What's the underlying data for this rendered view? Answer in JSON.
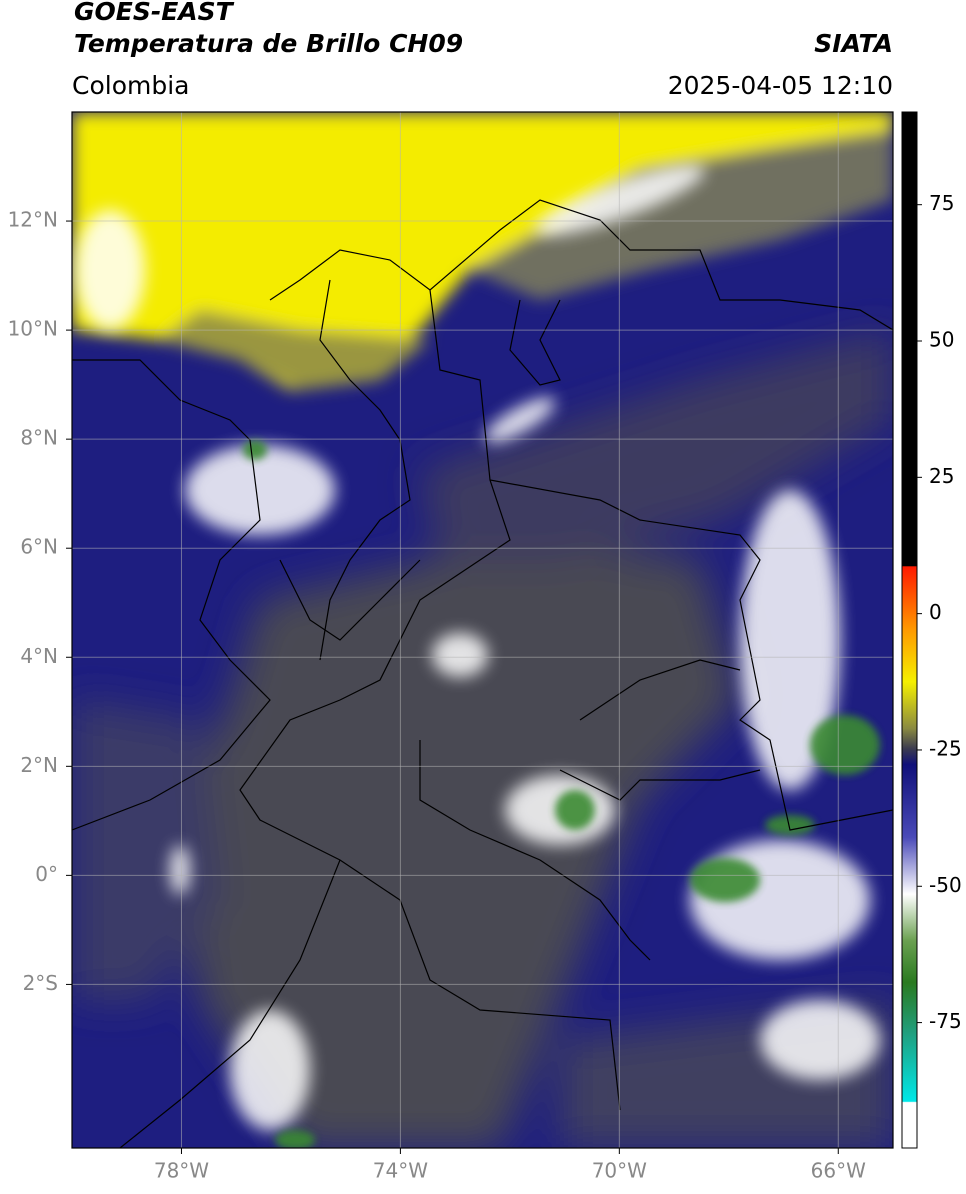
{
  "chart_data": {
    "type": "map",
    "title": "GOES-EAST",
    "subtitle": "Temperatura de Brillo CH09",
    "source": "SIATA",
    "region": "Colombia",
    "date": "2025-04-05 12:10",
    "xlim": [
      -80,
      -65
    ],
    "ylim": [
      -5,
      14
    ],
    "xticks": [
      {
        "value": -78,
        "label": "78°W"
      },
      {
        "value": -74,
        "label": "74°W"
      },
      {
        "value": -70,
        "label": "70°W"
      },
      {
        "value": -66,
        "label": "66°W"
      }
    ],
    "yticks": [
      {
        "value": 12,
        "label": "12°N"
      },
      {
        "value": 10,
        "label": "10°N"
      },
      {
        "value": 8,
        "label": "8°N"
      },
      {
        "value": 6,
        "label": "6°N"
      },
      {
        "value": 4,
        "label": "4°N"
      },
      {
        "value": 2,
        "label": "2°N"
      },
      {
        "value": 0,
        "label": "0°"
      },
      {
        "value": -2,
        "label": "2°S"
      }
    ],
    "grid": true,
    "colorbar": {
      "lim": [
        -98,
        92
      ],
      "ticks": [
        75,
        50,
        25,
        0,
        -25,
        -50,
        -75
      ]
    }
  }
}
